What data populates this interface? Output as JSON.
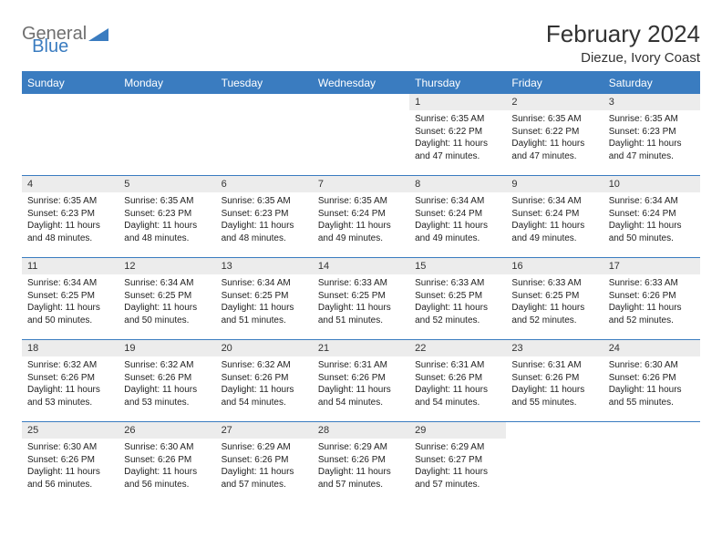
{
  "logo": {
    "general": "General",
    "blue": "Blue"
  },
  "title": "February 2024",
  "location": "Diezue, Ivory Coast",
  "colors": {
    "accent": "#3a7cc0",
    "daynum_bg": "#ececec",
    "text": "#222222"
  },
  "weekdays": [
    "Sunday",
    "Monday",
    "Tuesday",
    "Wednesday",
    "Thursday",
    "Friday",
    "Saturday"
  ],
  "weeks": [
    [
      null,
      null,
      null,
      null,
      {
        "n": "1",
        "sr": "6:35 AM",
        "ss": "6:22 PM",
        "dl": "11 hours and 47 minutes."
      },
      {
        "n": "2",
        "sr": "6:35 AM",
        "ss": "6:22 PM",
        "dl": "11 hours and 47 minutes."
      },
      {
        "n": "3",
        "sr": "6:35 AM",
        "ss": "6:23 PM",
        "dl": "11 hours and 47 minutes."
      }
    ],
    [
      {
        "n": "4",
        "sr": "6:35 AM",
        "ss": "6:23 PM",
        "dl": "11 hours and 48 minutes."
      },
      {
        "n": "5",
        "sr": "6:35 AM",
        "ss": "6:23 PM",
        "dl": "11 hours and 48 minutes."
      },
      {
        "n": "6",
        "sr": "6:35 AM",
        "ss": "6:23 PM",
        "dl": "11 hours and 48 minutes."
      },
      {
        "n": "7",
        "sr": "6:35 AM",
        "ss": "6:24 PM",
        "dl": "11 hours and 49 minutes."
      },
      {
        "n": "8",
        "sr": "6:34 AM",
        "ss": "6:24 PM",
        "dl": "11 hours and 49 minutes."
      },
      {
        "n": "9",
        "sr": "6:34 AM",
        "ss": "6:24 PM",
        "dl": "11 hours and 49 minutes."
      },
      {
        "n": "10",
        "sr": "6:34 AM",
        "ss": "6:24 PM",
        "dl": "11 hours and 50 minutes."
      }
    ],
    [
      {
        "n": "11",
        "sr": "6:34 AM",
        "ss": "6:25 PM",
        "dl": "11 hours and 50 minutes."
      },
      {
        "n": "12",
        "sr": "6:34 AM",
        "ss": "6:25 PM",
        "dl": "11 hours and 50 minutes."
      },
      {
        "n": "13",
        "sr": "6:34 AM",
        "ss": "6:25 PM",
        "dl": "11 hours and 51 minutes."
      },
      {
        "n": "14",
        "sr": "6:33 AM",
        "ss": "6:25 PM",
        "dl": "11 hours and 51 minutes."
      },
      {
        "n": "15",
        "sr": "6:33 AM",
        "ss": "6:25 PM",
        "dl": "11 hours and 52 minutes."
      },
      {
        "n": "16",
        "sr": "6:33 AM",
        "ss": "6:25 PM",
        "dl": "11 hours and 52 minutes."
      },
      {
        "n": "17",
        "sr": "6:33 AM",
        "ss": "6:26 PM",
        "dl": "11 hours and 52 minutes."
      }
    ],
    [
      {
        "n": "18",
        "sr": "6:32 AM",
        "ss": "6:26 PM",
        "dl": "11 hours and 53 minutes."
      },
      {
        "n": "19",
        "sr": "6:32 AM",
        "ss": "6:26 PM",
        "dl": "11 hours and 53 minutes."
      },
      {
        "n": "20",
        "sr": "6:32 AM",
        "ss": "6:26 PM",
        "dl": "11 hours and 54 minutes."
      },
      {
        "n": "21",
        "sr": "6:31 AM",
        "ss": "6:26 PM",
        "dl": "11 hours and 54 minutes."
      },
      {
        "n": "22",
        "sr": "6:31 AM",
        "ss": "6:26 PM",
        "dl": "11 hours and 54 minutes."
      },
      {
        "n": "23",
        "sr": "6:31 AM",
        "ss": "6:26 PM",
        "dl": "11 hours and 55 minutes."
      },
      {
        "n": "24",
        "sr": "6:30 AM",
        "ss": "6:26 PM",
        "dl": "11 hours and 55 minutes."
      }
    ],
    [
      {
        "n": "25",
        "sr": "6:30 AM",
        "ss": "6:26 PM",
        "dl": "11 hours and 56 minutes."
      },
      {
        "n": "26",
        "sr": "6:30 AM",
        "ss": "6:26 PM",
        "dl": "11 hours and 56 minutes."
      },
      {
        "n": "27",
        "sr": "6:29 AM",
        "ss": "6:26 PM",
        "dl": "11 hours and 57 minutes."
      },
      {
        "n": "28",
        "sr": "6:29 AM",
        "ss": "6:26 PM",
        "dl": "11 hours and 57 minutes."
      },
      {
        "n": "29",
        "sr": "6:29 AM",
        "ss": "6:27 PM",
        "dl": "11 hours and 57 minutes."
      },
      null,
      null
    ]
  ],
  "labels": {
    "sunrise": "Sunrise:",
    "sunset": "Sunset:",
    "daylight": "Daylight:"
  }
}
